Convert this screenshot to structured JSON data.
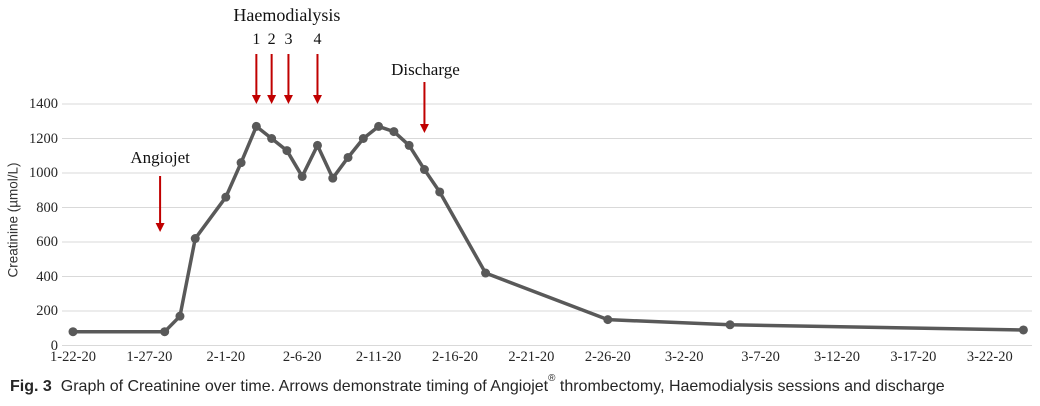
{
  "colors": {
    "series": "#595959",
    "arrow": "#c00000",
    "gridline": "#d9d9d9",
    "text": "#1a1a1a"
  },
  "caption": {
    "fig_label": "Fig. 3",
    "text_before": "Graph of Creatinine over time. Arrows demonstrate timing of Angiojet",
    "registered_mark": "®",
    "text_after": " thrombectomy, Haemodialysis sessions and discharge"
  },
  "chart_data": {
    "type": "line",
    "title": "",
    "xlabel": "",
    "ylabel": "Creatinine (µmol/L)",
    "ylim": [
      0,
      1400
    ],
    "grid": "horizontal",
    "legend": false,
    "yticks": [
      0,
      200,
      400,
      600,
      800,
      1000,
      1200,
      1400
    ],
    "xticks": [
      {
        "label": "1-22-20",
        "day": 0
      },
      {
        "label": "1-27-20",
        "day": 5
      },
      {
        "label": "2-1-20",
        "day": 10
      },
      {
        "label": "2-6-20",
        "day": 15
      },
      {
        "label": "2-11-20",
        "day": 20
      },
      {
        "label": "2-16-20",
        "day": 25
      },
      {
        "label": "2-21-20",
        "day": 30
      },
      {
        "label": "2-26-20",
        "day": 35
      },
      {
        "label": "3-2-20",
        "day": 40
      },
      {
        "label": "3-7-20",
        "day": 45
      },
      {
        "label": "3-12-20",
        "day": 50
      },
      {
        "label": "3-17-20",
        "day": 55
      },
      {
        "label": "3-22-20",
        "day": 60
      }
    ],
    "series": [
      {
        "name": "Creatinine",
        "color": "#595959",
        "points": [
          {
            "date": "1-22-20",
            "day": 0,
            "value": 80
          },
          {
            "date": "1-28-20",
            "day": 6,
            "value": 80
          },
          {
            "date": "1-29-20",
            "day": 7,
            "value": 170
          },
          {
            "date": "1-30-20",
            "day": 8,
            "value": 620
          },
          {
            "date": "2-1-20",
            "day": 10,
            "value": 860
          },
          {
            "date": "2-2-20",
            "day": 11,
            "value": 1060
          },
          {
            "date": "2-3-20",
            "day": 12,
            "value": 1270
          },
          {
            "date": "2-4-20",
            "day": 13,
            "value": 1200
          },
          {
            "date": "2-5-20",
            "day": 14,
            "value": 1130
          },
          {
            "date": "2-6-20",
            "day": 15,
            "value": 980
          },
          {
            "date": "2-7-20",
            "day": 16,
            "value": 1160
          },
          {
            "date": "2-8-20",
            "day": 17,
            "value": 970
          },
          {
            "date": "2-9-20",
            "day": 18,
            "value": 1090
          },
          {
            "date": "2-10-20",
            "day": 19,
            "value": 1200
          },
          {
            "date": "2-11-20",
            "day": 20,
            "value": 1270
          },
          {
            "date": "2-12-20",
            "day": 21,
            "value": 1240
          },
          {
            "date": "2-13-20",
            "day": 22,
            "value": 1160
          },
          {
            "date": "2-14-20",
            "day": 23,
            "value": 1020
          },
          {
            "date": "2-15-20",
            "day": 24,
            "value": 890
          },
          {
            "date": "2-18-20",
            "day": 27,
            "value": 420
          },
          {
            "date": "2-26-20",
            "day": 35,
            "value": 150
          },
          {
            "date": "3-6-20",
            "day": 43,
            "value": 120
          },
          {
            "date": "3-24-20",
            "day": 62.2,
            "value": 90
          }
        ]
      }
    ],
    "annotations": {
      "haemodialysis": {
        "label": "Haemodialysis",
        "label_day": 14,
        "sessions": [
          {
            "number": "1",
            "day": 12
          },
          {
            "number": "2",
            "day": 13
          },
          {
            "number": "3",
            "day": 14.1
          },
          {
            "number": "4",
            "day": 16
          }
        ]
      },
      "angiojet": {
        "label": "Angiojet",
        "day": 5.7
      },
      "discharge": {
        "label": "Discharge",
        "day": 23
      }
    }
  }
}
